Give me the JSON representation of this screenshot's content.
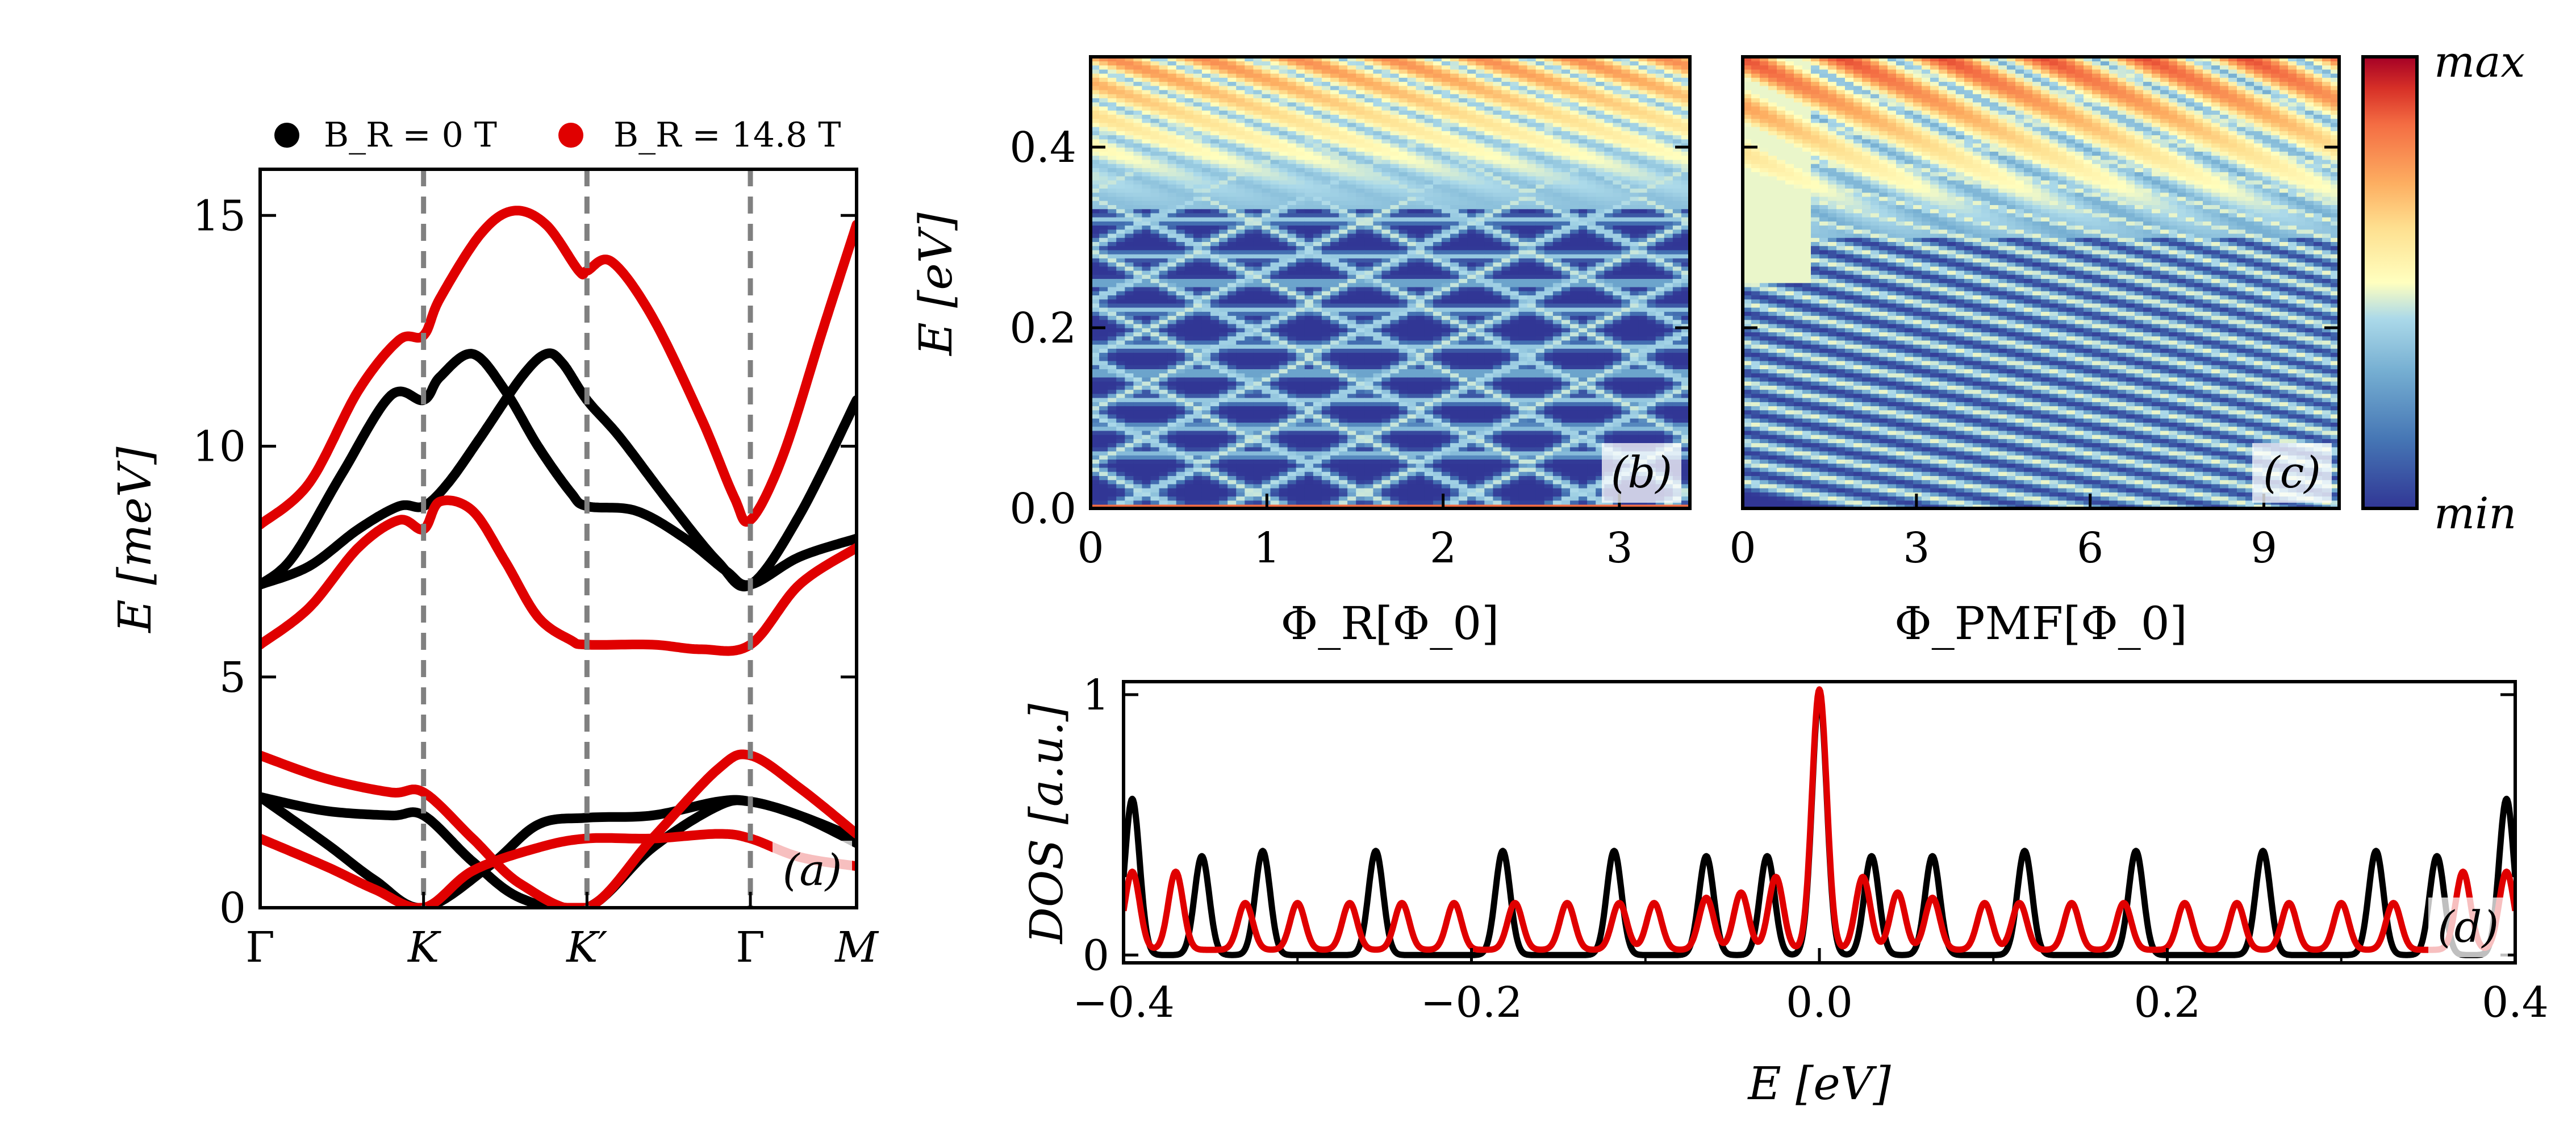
{
  "chart_data": [
    {
      "panel": "(a)",
      "type": "line",
      "ylabel": "E [meV]",
      "xlabel": "",
      "ylim": [
        0,
        16
      ],
      "yticks": [
        "0",
        "5",
        "10",
        "15"
      ],
      "xticks": [
        "Γ",
        "K",
        "K′",
        "Γ",
        "M"
      ],
      "k_points": [
        0,
        1,
        2,
        3,
        3.65
      ],
      "legend": [
        {
          "label": "B_R = 0 T",
          "color": "#000000"
        },
        {
          "label": "B_R = 14.8 T",
          "color": "#e00000"
        }
      ],
      "series": [
        {
          "name": "B_R = 0 T, band 1",
          "color": "#000000",
          "points": [
            [
              0,
              7.0
            ],
            [
              0.3,
              7.4
            ],
            [
              0.6,
              8.2
            ],
            [
              0.85,
              8.7
            ],
            [
              1.0,
              8.7
            ],
            [
              1.15,
              9.2
            ],
            [
              1.35,
              10.2
            ],
            [
              1.6,
              11.5
            ],
            [
              1.75,
              12.0
            ],
            [
              1.85,
              11.8
            ],
            [
              2.0,
              11.0
            ],
            [
              2.2,
              10.2
            ],
            [
              2.5,
              8.8
            ],
            [
              2.8,
              7.5
            ],
            [
              3.0,
              7.0
            ],
            [
              3.3,
              8.5
            ],
            [
              3.65,
              11.0
            ]
          ]
        },
        {
          "name": "B_R = 0 T, band 2",
          "color": "#000000",
          "points": [
            [
              0,
              7.0
            ],
            [
              0.2,
              7.6
            ],
            [
              0.5,
              9.4
            ],
            [
              0.8,
              11.1
            ],
            [
              1.0,
              11.0
            ],
            [
              1.1,
              11.5
            ],
            [
              1.3,
              12.0
            ],
            [
              1.5,
              11.2
            ],
            [
              1.7,
              10.0
            ],
            [
              1.9,
              9.0
            ],
            [
              2.0,
              8.7
            ],
            [
              2.3,
              8.6
            ],
            [
              2.6,
              8.0
            ],
            [
              2.85,
              7.3
            ],
            [
              3.0,
              7.0
            ],
            [
              3.3,
              7.6
            ],
            [
              3.65,
              8.0
            ]
          ]
        },
        {
          "name": "B_R = 0 T, band 3",
          "color": "#000000",
          "points": [
            [
              0,
              2.4
            ],
            [
              0.4,
              2.1
            ],
            [
              0.8,
              2.0
            ],
            [
              1.0,
              2.0
            ],
            [
              1.3,
              1.0
            ],
            [
              1.6,
              0.2
            ],
            [
              2.0,
              0.0
            ],
            [
              2.4,
              1.3
            ],
            [
              2.8,
              2.2
            ],
            [
              3.0,
              2.3
            ],
            [
              3.3,
              2.0
            ],
            [
              3.65,
              1.5
            ]
          ]
        },
        {
          "name": "B_R = 0 T, band 4",
          "color": "#000000",
          "points": [
            [
              0,
              2.4
            ],
            [
              0.4,
              1.4
            ],
            [
              0.7,
              0.6
            ],
            [
              1.0,
              0.0
            ],
            [
              1.4,
              0.9
            ],
            [
              1.7,
              1.8
            ],
            [
              2.0,
              1.95
            ],
            [
              2.4,
              2.0
            ],
            [
              2.8,
              2.3
            ],
            [
              3.0,
              2.3
            ],
            [
              3.3,
              2.0
            ],
            [
              3.65,
              1.4
            ]
          ]
        },
        {
          "name": "B_R = 14.8 T, band 1",
          "color": "#e00000",
          "points": [
            [
              0,
              8.3
            ],
            [
              0.3,
              9.2
            ],
            [
              0.6,
              11.2
            ],
            [
              0.85,
              12.3
            ],
            [
              1.0,
              12.4
            ],
            [
              1.1,
              13.2
            ],
            [
              1.35,
              14.6
            ],
            [
              1.55,
              15.1
            ],
            [
              1.75,
              14.8
            ],
            [
              1.95,
              13.8
            ],
            [
              2.0,
              13.8
            ],
            [
              2.15,
              14.0
            ],
            [
              2.4,
              12.8
            ],
            [
              2.7,
              10.6
            ],
            [
              2.9,
              8.9
            ],
            [
              3.0,
              8.4
            ],
            [
              3.2,
              9.8
            ],
            [
              3.45,
              12.6
            ],
            [
              3.65,
              14.8
            ]
          ]
        },
        {
          "name": "B_R = 14.8 T, band 2",
          "color": "#e00000",
          "points": [
            [
              0,
              5.7
            ],
            [
              0.3,
              6.5
            ],
            [
              0.6,
              7.8
            ],
            [
              0.85,
              8.4
            ],
            [
              1.0,
              8.2
            ],
            [
              1.1,
              8.8
            ],
            [
              1.3,
              8.6
            ],
            [
              1.5,
              7.5
            ],
            [
              1.7,
              6.3
            ],
            [
              1.9,
              5.8
            ],
            [
              2.0,
              5.7
            ],
            [
              2.4,
              5.7
            ],
            [
              2.7,
              5.6
            ],
            [
              3.0,
              5.7
            ],
            [
              3.3,
              7.0
            ],
            [
              3.65,
              7.8
            ]
          ]
        },
        {
          "name": "B_R = 14.8 T, band 3",
          "color": "#e00000",
          "points": [
            [
              0,
              3.3
            ],
            [
              0.4,
              2.8
            ],
            [
              0.8,
              2.5
            ],
            [
              1.0,
              2.5
            ],
            [
              1.3,
              1.5
            ],
            [
              1.6,
              0.5
            ],
            [
              2.0,
              0.0
            ],
            [
              2.4,
              1.5
            ],
            [
              2.8,
              3.0
            ],
            [
              3.0,
              3.3
            ],
            [
              3.3,
              2.6
            ],
            [
              3.65,
              1.6
            ]
          ]
        },
        {
          "name": "B_R = 14.8 T, band 4",
          "color": "#e00000",
          "points": [
            [
              0,
              1.5
            ],
            [
              0.4,
              0.9
            ],
            [
              0.7,
              0.4
            ],
            [
              1.0,
              0.0
            ],
            [
              1.3,
              0.8
            ],
            [
              1.7,
              1.3
            ],
            [
              2.0,
              1.5
            ],
            [
              2.4,
              1.5
            ],
            [
              2.8,
              1.6
            ],
            [
              3.0,
              1.5
            ],
            [
              3.3,
              1.1
            ],
            [
              3.65,
              0.9
            ]
          ]
        }
      ]
    },
    {
      "panel": "(b)",
      "type": "heatmap",
      "xlabel": "Φ_R[Φ_0]",
      "ylabel": "E [eV]",
      "xlim": [
        0,
        3.4
      ],
      "ylim": [
        0,
        0.5
      ],
      "xticks": [
        "0",
        "1",
        "2",
        "3"
      ],
      "yticks": [
        "0.0",
        "0.2",
        "0.4"
      ],
      "description_values": {
        "colormap": "RdYlBu_r",
        "line_levels_eV": [
          0.0,
          0.06,
          0.09,
          0.12,
          0.15,
          0.18,
          0.22,
          0.25,
          0.28,
          0.32,
          0.35,
          0.38,
          0.41,
          0.45,
          0.48
        ]
      }
    },
    {
      "panel": "(c)",
      "type": "heatmap",
      "xlabel": "Φ_PMF[Φ_0]",
      "xlim": [
        0,
        10.3
      ],
      "ylim": [
        0,
        0.5
      ],
      "xticks": [
        "0",
        "3",
        "6",
        "9"
      ],
      "colorbar": {
        "max_label": "max",
        "min_label": "min"
      }
    },
    {
      "panel": "(d)",
      "type": "line",
      "xlabel": "E [eV]",
      "ylabel": "DOS [a.u.]",
      "xlim": [
        -0.4,
        0.4
      ],
      "ylim": [
        -0.03,
        1.05
      ],
      "xticks": [
        "−0.4",
        "−0.2",
        "0.0",
        "0.2",
        "0.4"
      ],
      "yticks": [
        "0",
        "1"
      ],
      "series": [
        {
          "name": "B_R = 0 T",
          "color": "#000000",
          "peaks": [
            [
              -0.395,
              0.6
            ],
            [
              -0.355,
              0.38
            ],
            [
              -0.32,
              0.4
            ],
            [
              -0.255,
              0.4
            ],
            [
              -0.182,
              0.4
            ],
            [
              -0.118,
              0.4
            ],
            [
              -0.065,
              0.38
            ],
            [
              -0.03,
              0.38
            ],
            [
              0.0,
              1.0
            ],
            [
              0.03,
              0.38
            ],
            [
              0.065,
              0.38
            ],
            [
              0.118,
              0.4
            ],
            [
              0.182,
              0.4
            ],
            [
              0.255,
              0.4
            ],
            [
              0.32,
              0.4
            ],
            [
              0.355,
              0.38
            ],
            [
              0.395,
              0.6
            ]
          ],
          "width": 0.006,
          "base": 0.0
        },
        {
          "name": "B_R = 14.8 T",
          "color": "#e00000",
          "peaks": [
            [
              -0.395,
              0.3
            ],
            [
              -0.37,
              0.3
            ],
            [
              -0.33,
              0.18
            ],
            [
              -0.3,
              0.18
            ],
            [
              -0.27,
              0.18
            ],
            [
              -0.24,
              0.18
            ],
            [
              -0.21,
              0.18
            ],
            [
              -0.175,
              0.18
            ],
            [
              -0.145,
              0.18
            ],
            [
              -0.115,
              0.18
            ],
            [
              -0.095,
              0.18
            ],
            [
              -0.065,
              0.2
            ],
            [
              -0.045,
              0.22
            ],
            [
              -0.025,
              0.28
            ],
            [
              0.0,
              1.0
            ],
            [
              0.025,
              0.28
            ],
            [
              0.045,
              0.22
            ],
            [
              0.065,
              0.2
            ],
            [
              0.095,
              0.18
            ],
            [
              0.115,
              0.18
            ],
            [
              0.145,
              0.18
            ],
            [
              0.175,
              0.18
            ],
            [
              0.21,
              0.18
            ],
            [
              0.24,
              0.18
            ],
            [
              0.27,
              0.18
            ],
            [
              0.3,
              0.18
            ],
            [
              0.33,
              0.18
            ],
            [
              0.37,
              0.3
            ],
            [
              0.395,
              0.3
            ]
          ],
          "width": 0.006,
          "base": 0.02
        }
      ]
    }
  ]
}
